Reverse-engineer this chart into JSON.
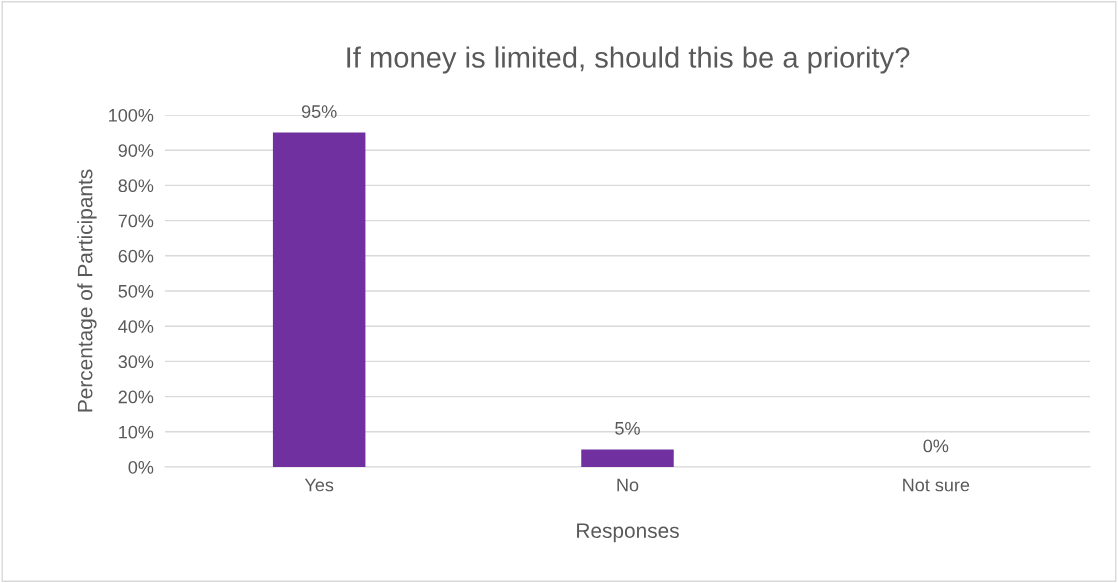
{
  "chart_data": {
    "type": "bar",
    "title": "If money is limited, should this be a priority?",
    "xlabel": "Responses",
    "ylabel": "Percentage of Participants",
    "categories": [
      "Yes",
      "No",
      "Not sure"
    ],
    "values": [
      95,
      5,
      0
    ],
    "color": "#7030a0",
    "value_labels": [
      "95%",
      "5%",
      "0%"
    ],
    "ylim": [
      0,
      100
    ],
    "yticks": [
      {
        "value": 0,
        "label": "0%"
      },
      {
        "value": 10,
        "label": "10%"
      },
      {
        "value": 20,
        "label": "20%"
      },
      {
        "value": 30,
        "label": "30%"
      },
      {
        "value": 40,
        "label": "40%"
      },
      {
        "value": 50,
        "label": "50%"
      },
      {
        "value": 60,
        "label": "60%"
      },
      {
        "value": 70,
        "label": "70%"
      },
      {
        "value": 80,
        "label": "80%"
      },
      {
        "value": 90,
        "label": "90%"
      },
      {
        "value": 100,
        "label": "100%"
      }
    ],
    "grid": "y",
    "legend": false
  }
}
